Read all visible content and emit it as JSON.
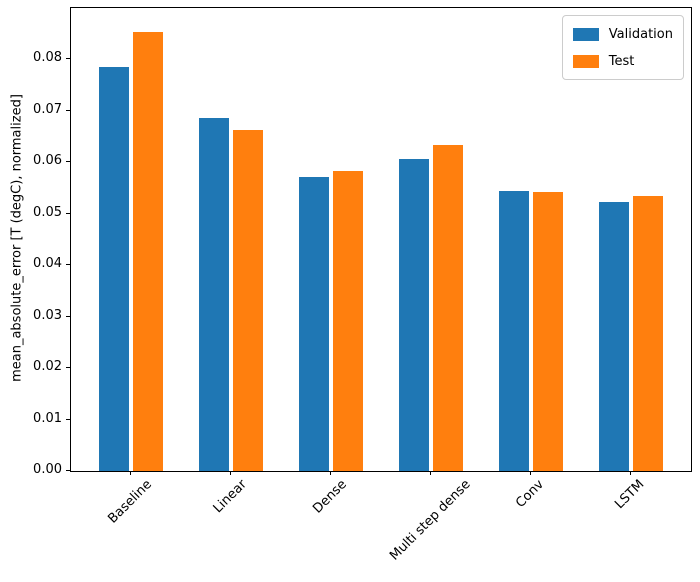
{
  "chart_data": {
    "type": "bar",
    "title": "",
    "xlabel": "",
    "ylabel": "mean_absolute_error [T (degC), normalized]",
    "categories": [
      "Baseline",
      "Linear",
      "Dense",
      "Multi step dense",
      "Conv",
      "LSTM"
    ],
    "series": [
      {
        "name": "Validation",
        "color": "#1f77b4",
        "values": [
          0.0785,
          0.0687,
          0.0572,
          0.0607,
          0.0545,
          0.0523
        ]
      },
      {
        "name": "Test",
        "color": "#ff7f0e",
        "values": [
          0.0854,
          0.0663,
          0.0584,
          0.0634,
          0.0543,
          0.0534
        ]
      }
    ],
    "ylim": [
      0,
      0.09
    ],
    "ytick_labels": [
      "0.00",
      "0.01",
      "0.02",
      "0.03",
      "0.04",
      "0.05",
      "0.06",
      "0.07",
      "0.08"
    ],
    "yticks": [
      0.0,
      0.01,
      0.02,
      0.03,
      0.04,
      0.05,
      0.06,
      0.07,
      0.08
    ],
    "x_tick_rotation": 45,
    "legend_position": "upper right",
    "grid": false
  }
}
